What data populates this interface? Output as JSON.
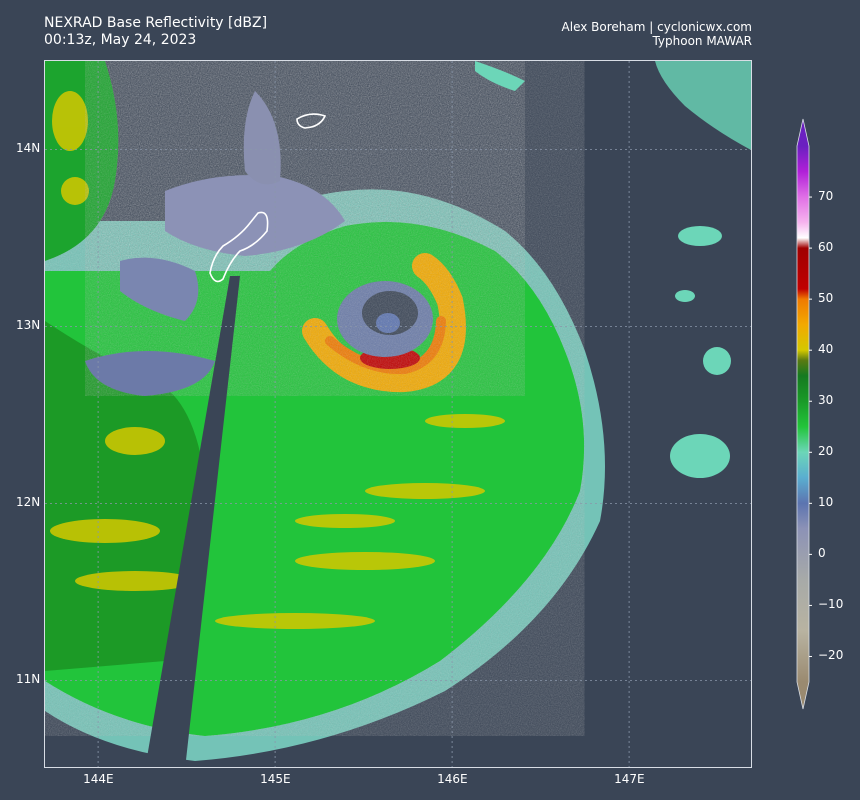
{
  "header": {
    "title_line1": "NEXRAD Base Reflectivity [dBZ]",
    "title_line2": "00:13z, May 24, 2023",
    "credit_line1": "Alex Boreham | cyclonicwx.com",
    "credit_line2": "Typhoon MAWAR"
  },
  "map": {
    "background_color": "#3a4556",
    "lat_labels": [
      {
        "label": "14N",
        "value": 14
      },
      {
        "label": "13N",
        "value": 13
      },
      {
        "label": "12N",
        "value": 12
      },
      {
        "label": "11N",
        "value": 11
      }
    ],
    "lon_labels": [
      {
        "label": "144E",
        "value": 144
      },
      {
        "label": "145E",
        "value": 145
      },
      {
        "label": "146E",
        "value": 146
      },
      {
        "label": "147E",
        "value": 147
      }
    ],
    "extent": {
      "lon_min": 143.7,
      "lon_max": 147.7,
      "lat_min": 10.5,
      "lat_max": 14.5
    },
    "features": {
      "typhoon_eye": "eye-icon",
      "island_outline": "guam-outline",
      "radar_beam_blockage": "beam-blockage-wedge"
    }
  },
  "colorbar": {
    "min": -25,
    "max": 80,
    "ticks": [
      {
        "label": "70",
        "value": 70
      },
      {
        "label": "60",
        "value": 60
      },
      {
        "label": "50",
        "value": 50
      },
      {
        "label": "40",
        "value": 40
      },
      {
        "label": "30",
        "value": 30
      },
      {
        "label": "20",
        "value": 20
      },
      {
        "label": "10",
        "value": 10
      },
      {
        "label": "0",
        "value": 0
      },
      {
        "label": "−10",
        "value": -10
      },
      {
        "label": "−20",
        "value": -20
      }
    ],
    "stops": [
      {
        "v": -25,
        "color": "#9a8a70"
      },
      {
        "v": -15,
        "color": "#b8b3a1"
      },
      {
        "v": -5,
        "color": "#a7aaa8"
      },
      {
        "v": 5,
        "color": "#8c92b6"
      },
      {
        "v": 10,
        "color": "#5c74b0"
      },
      {
        "v": 15,
        "color": "#5aaed0"
      },
      {
        "v": 20,
        "color": "#6cd6b8"
      },
      {
        "v": 25,
        "color": "#22c43a"
      },
      {
        "v": 30,
        "color": "#1a9a28"
      },
      {
        "v": 35,
        "color": "#157a20"
      },
      {
        "v": 38,
        "color": "#5a7a12"
      },
      {
        "v": 40,
        "color": "#d4c800"
      },
      {
        "v": 45,
        "color": "#f2a900"
      },
      {
        "v": 50,
        "color": "#f07a00"
      },
      {
        "v": 52,
        "color": "#c00000"
      },
      {
        "v": 60,
        "color": "#a00000"
      },
      {
        "v": 62,
        "color": "#ffffff"
      },
      {
        "v": 65,
        "color": "#f6b4ee"
      },
      {
        "v": 70,
        "color": "#e070e6"
      },
      {
        "v": 75,
        "color": "#b020d8"
      },
      {
        "v": 80,
        "color": "#6a20c0"
      }
    ]
  }
}
